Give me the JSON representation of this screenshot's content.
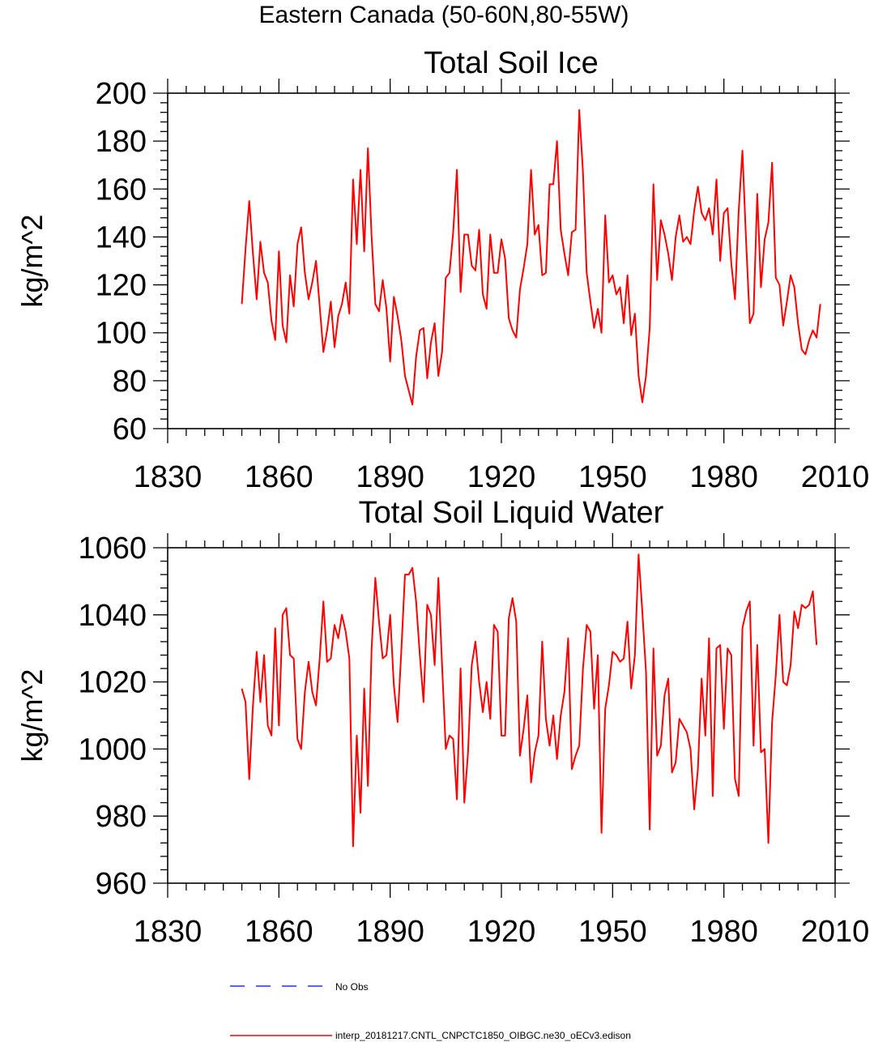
{
  "figure": {
    "title": "Eastern Canada (50-60N,80-55W)",
    "line_color": "#ff0000",
    "obs_color": "#0000ff"
  },
  "legend": {
    "obs_label": "No Obs",
    "model_label": "interp_20181217.CNTL_CNPCTC1850_OIBGC.ne30_oECv3.edison"
  },
  "chart_data": [
    {
      "type": "line",
      "title": "Total Soil Ice",
      "xlabel": "",
      "ylabel": "kg/m^2",
      "xlim": [
        1830,
        2010
      ],
      "ylim": [
        60,
        200
      ],
      "xticks": [
        1830,
        1860,
        1890,
        1920,
        1950,
        1980,
        2010
      ],
      "yticks": [
        60,
        80,
        100,
        120,
        140,
        160,
        180,
        200
      ],
      "x_start": 1850,
      "series": [
        {
          "name": "interp_20181217.CNTL_CNPCTC1850_OIBGC.ne30_oECv3.edison",
          "values": [
            112,
            135,
            155,
            133,
            114,
            138,
            125,
            121,
            105,
            97,
            134,
            103,
            96,
            124,
            111,
            137,
            144,
            125,
            114,
            121,
            130,
            111,
            92,
            101,
            113,
            94,
            107,
            112,
            121,
            108,
            164,
            137,
            168,
            134,
            177,
            140,
            112,
            109,
            122,
            110,
            88,
            115,
            107,
            97,
            82,
            76,
            70,
            90,
            101,
            102,
            81,
            96,
            104,
            82,
            92,
            123,
            125,
            142,
            168,
            117,
            141,
            141,
            128,
            126,
            143,
            116,
            110,
            141,
            125,
            125,
            139,
            131,
            106,
            101,
            98,
            118,
            127,
            137,
            168,
            141,
            145,
            124,
            125,
            162,
            162,
            180,
            143,
            133,
            124,
            142,
            143,
            193,
            167,
            125,
            113,
            102,
            110,
            100,
            149,
            121,
            124,
            116,
            119,
            104,
            124,
            99,
            108,
            82,
            71,
            82,
            102,
            162,
            122,
            147,
            141,
            133,
            122,
            140,
            149,
            138,
            140,
            137,
            151,
            161,
            150,
            147,
            152,
            141,
            164,
            130,
            150,
            152,
            129,
            114,
            151,
            176,
            138,
            104,
            108,
            158,
            119,
            139,
            146,
            171,
            123,
            120,
            103,
            113,
            124,
            119,
            104,
            93,
            91,
            97,
            101,
            98,
            112
          ]
        }
      ]
    },
    {
      "type": "line",
      "title": "Total Soil Liquid Water",
      "xlabel": "",
      "ylabel": "kg/m^2",
      "xlim": [
        1830,
        2010
      ],
      "ylim": [
        960,
        1060
      ],
      "xticks": [
        1830,
        1860,
        1890,
        1920,
        1950,
        1980,
        2010
      ],
      "yticks": [
        960,
        980,
        1000,
        1020,
        1040,
        1060
      ],
      "x_start": 1850,
      "series": [
        {
          "name": "interp_20181217.CNTL_CNPCTC1850_OIBGC.ne30_oECv3.edison",
          "values": [
            1018,
            1014,
            991,
            1013,
            1029,
            1014,
            1028,
            1007,
            1004,
            1036,
            1007,
            1040,
            1042,
            1028,
            1027,
            1003,
            1000,
            1017,
            1026,
            1017,
            1013,
            1027,
            1044,
            1026,
            1027,
            1037,
            1033,
            1040,
            1035,
            1027,
            971,
            1004,
            981,
            1018,
            989,
            1030,
            1051,
            1038,
            1027,
            1028,
            1040,
            1019,
            1008,
            1029,
            1052,
            1052,
            1054,
            1044,
            1028,
            1014,
            1043,
            1040,
            1025,
            1051,
            1025,
            1000,
            1004,
            1003,
            985,
            1024,
            984,
            999,
            1025,
            1032,
            1020,
            1011,
            1020,
            1009,
            1037,
            1035,
            1004,
            1004,
            1039,
            1045,
            1038,
            998,
            1006,
            1016,
            990,
            999,
            1004,
            1032,
            1009,
            1001,
            1010,
            997,
            1010,
            1017,
            1033,
            994,
            998,
            1001,
            1024,
            1037,
            1035,
            1012,
            1028,
            975,
            1012,
            1019,
            1029,
            1028,
            1026,
            1027,
            1038,
            1018,
            1028,
            1058,
            1041,
            1023,
            976,
            1030,
            998,
            1001,
            1016,
            1021,
            993,
            996,
            1009,
            1007,
            1005,
            1000,
            982,
            994,
            1021,
            1004,
            1033,
            986,
            1030,
            1031,
            1006,
            1030,
            1028,
            991,
            986,
            1036,
            1041,
            1044,
            1001,
            1031,
            999,
            1000,
            972,
            1008,
            1022,
            1040,
            1020,
            1019,
            1025,
            1041,
            1036,
            1043,
            1042,
            1043,
            1047,
            1031
          ]
        }
      ]
    }
  ]
}
